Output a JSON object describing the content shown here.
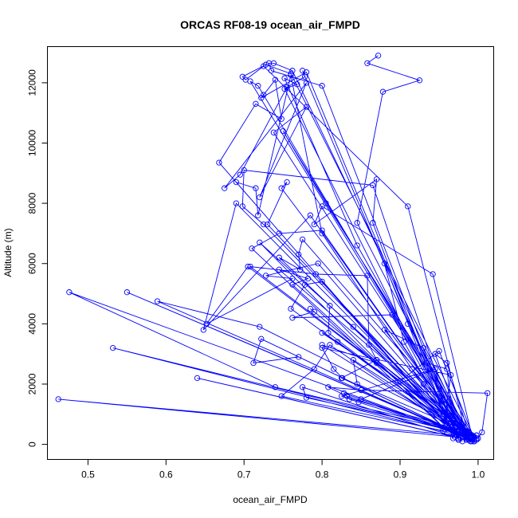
{
  "chart_data": {
    "type": "line",
    "title": "ORCAS RF08-19 ocean_air_FMPD",
    "xlabel": "ocean_air_FMPD",
    "ylabel": "Altitude (m)",
    "xlim": [
      0.448,
      1.02
    ],
    "ylim": [
      -500,
      13200
    ],
    "xticks": [
      0.5,
      0.6,
      0.7,
      0.8,
      0.9,
      1.0
    ],
    "xtick_labels": [
      "0.5",
      "0.6",
      "0.7",
      "0.8",
      "0.9",
      "1.0"
    ],
    "yticks": [
      0,
      2000,
      4000,
      6000,
      8000,
      10000,
      12000
    ],
    "ytick_labels": [
      "0",
      "2000",
      "4000",
      "6000",
      "8000",
      "10000",
      "12000"
    ],
    "grid": false,
    "marker": "open-circle",
    "color": "#0000ff",
    "series": [
      {
        "x": [
          0.872,
          0.858,
          0.925,
          0.878,
          0.845,
          0.985,
          0.91,
          0.725,
          0.702,
          0.698,
          0.728,
          0.76,
          0.995,
          0.975,
          0.8,
          0.735,
          0.732,
          0.738,
          0.762,
          0.99,
          0.708,
          0.718,
          0.725,
          0.985,
          0.845,
          0.752,
          0.768,
          0.752,
          0.975,
          0.78,
          0.722,
          0.74,
          0.748,
          0.715,
          0.668,
          0.98,
          0.69,
          0.715,
          0.718,
          0.76,
          0.8,
          0.975,
          0.775,
          0.778,
          0.755,
          0.695,
          0.675,
          0.78,
          0.72,
          0.78,
          0.738,
          0.985,
          0.75,
          0.805,
          0.992,
          0.942,
          0.8,
          0.79,
          0.87,
          0.865,
          0.968,
          0.88,
          0.905,
          0.975,
          0.865,
          0.7,
          0.698,
          0.725,
          0.99,
          0.748,
          0.755,
          0.73,
          0.992,
          0.69,
          0.648,
          0.785,
          0.988,
          0.8,
          0.745,
          0.71,
          0.958,
          0.72,
          0.998,
          0.775,
          0.77,
          0.772,
          0.745,
          0.985,
          0.795,
          0.728,
          0.762,
          0.652,
          0.705,
          0.998,
          0.708,
          0.792,
          0.858,
          0.86,
          0.87,
          0.998,
          0.745,
          0.782,
          0.762,
          0.972,
          0.8,
          0.778,
          0.76,
          0.995,
          0.785,
          0.79,
          0.762,
          0.89,
          0.975,
          0.84,
          0.81,
          0.808,
          0.985,
          0.81,
          0.79,
          0.748,
          0.955,
          0.965,
          0.8,
          0.815,
          0.826,
          0.968,
          0.722,
          0.712,
          0.77,
          0.992,
          0.828,
          0.835,
          0.847,
          0.975,
          0.832,
          0.808,
          0.85,
          0.978,
          0.85,
          0.945,
          0.825,
          0.988,
          0.74,
          0.476,
          0.992,
          0.55,
          0.995,
          0.589,
          0.72,
          0.998,
          0.8,
          0.82,
          0.995,
          0.99,
          0.91,
          0.985,
          0.88,
          0.93,
          0.99,
          0.87,
          0.825,
          0.99,
          0.96,
          0.945,
          0.985,
          0.64,
          0.995,
          0.8,
          0.87,
          0.995,
          0.95,
          0.9,
          0.985,
          0.93,
          0.915,
          0.99,
          0.532,
          0.99,
          0.462,
          0.995,
          0.84,
          0.845,
          0.998,
          0.78,
          0.775,
          0.97,
          0.96,
          0.935,
          0.985,
          0.85,
          1.012,
          1.005,
          1.0,
          0.975
        ],
        "y": [
          12900,
          12650,
          12080,
          11700,
          7350,
          300,
          7900,
          12550,
          12100,
          12200,
          12600,
          12300,
          200,
          150,
          11900,
          12400,
          12650,
          12650,
          12400,
          100,
          12050,
          11900,
          11600,
          250,
          6600,
          12150,
          11950,
          11800,
          200,
          12350,
          11500,
          12100,
          10800,
          11300,
          9350,
          100,
          8700,
          8500,
          7600,
          12250,
          7000,
          150,
          12400,
          12200,
          11850,
          8950,
          8500,
          12000,
          8200,
          11200,
          10350,
          400,
          10400,
          8000,
          300,
          5650,
          7900,
          7300,
          8800,
          7350,
          200,
          6000,
          3400,
          150,
          8600,
          9100,
          7900,
          7300,
          200,
          8500,
          8700,
          7300,
          100,
          8000,
          3800,
          7600,
          150,
          7100,
          7000,
          6500,
          500,
          6700,
          200,
          6800,
          6300,
          5800,
          6200,
          300,
          6000,
          5600,
          5500,
          4000,
          5900,
          150,
          5900,
          5650,
          5600,
          3300,
          2800,
          200,
          5800,
          5500,
          5300,
          300,
          5400,
          5300,
          4500,
          100,
          4500,
          4400,
          4200,
          4300,
          300,
          3900,
          4600,
          3700,
          200,
          3300,
          2500,
          1600,
          450,
          2300,
          3200,
          2500,
          2200,
          450,
          3500,
          2700,
          2900,
          150,
          1700,
          1500,
          1400,
          350,
          1600,
          1900,
          1800,
          300,
          1500,
          2500,
          1600,
          400,
          1900,
          5050,
          200,
          5050,
          150,
          4750,
          3900,
          300,
          3700,
          3400,
          100,
          200,
          4000,
          350,
          3800,
          3200,
          250,
          2800,
          2200,
          200,
          2700,
          3000,
          150,
          2200,
          100,
          3300,
          2700,
          200,
          3100,
          2100,
          150,
          2000,
          2500,
          300,
          3200,
          200,
          1500,
          250,
          2800,
          2000,
          300,
          1550,
          1900,
          250,
          2500,
          2700,
          200,
          1800,
          1700,
          400,
          200,
          150
        ]
      }
    ]
  }
}
